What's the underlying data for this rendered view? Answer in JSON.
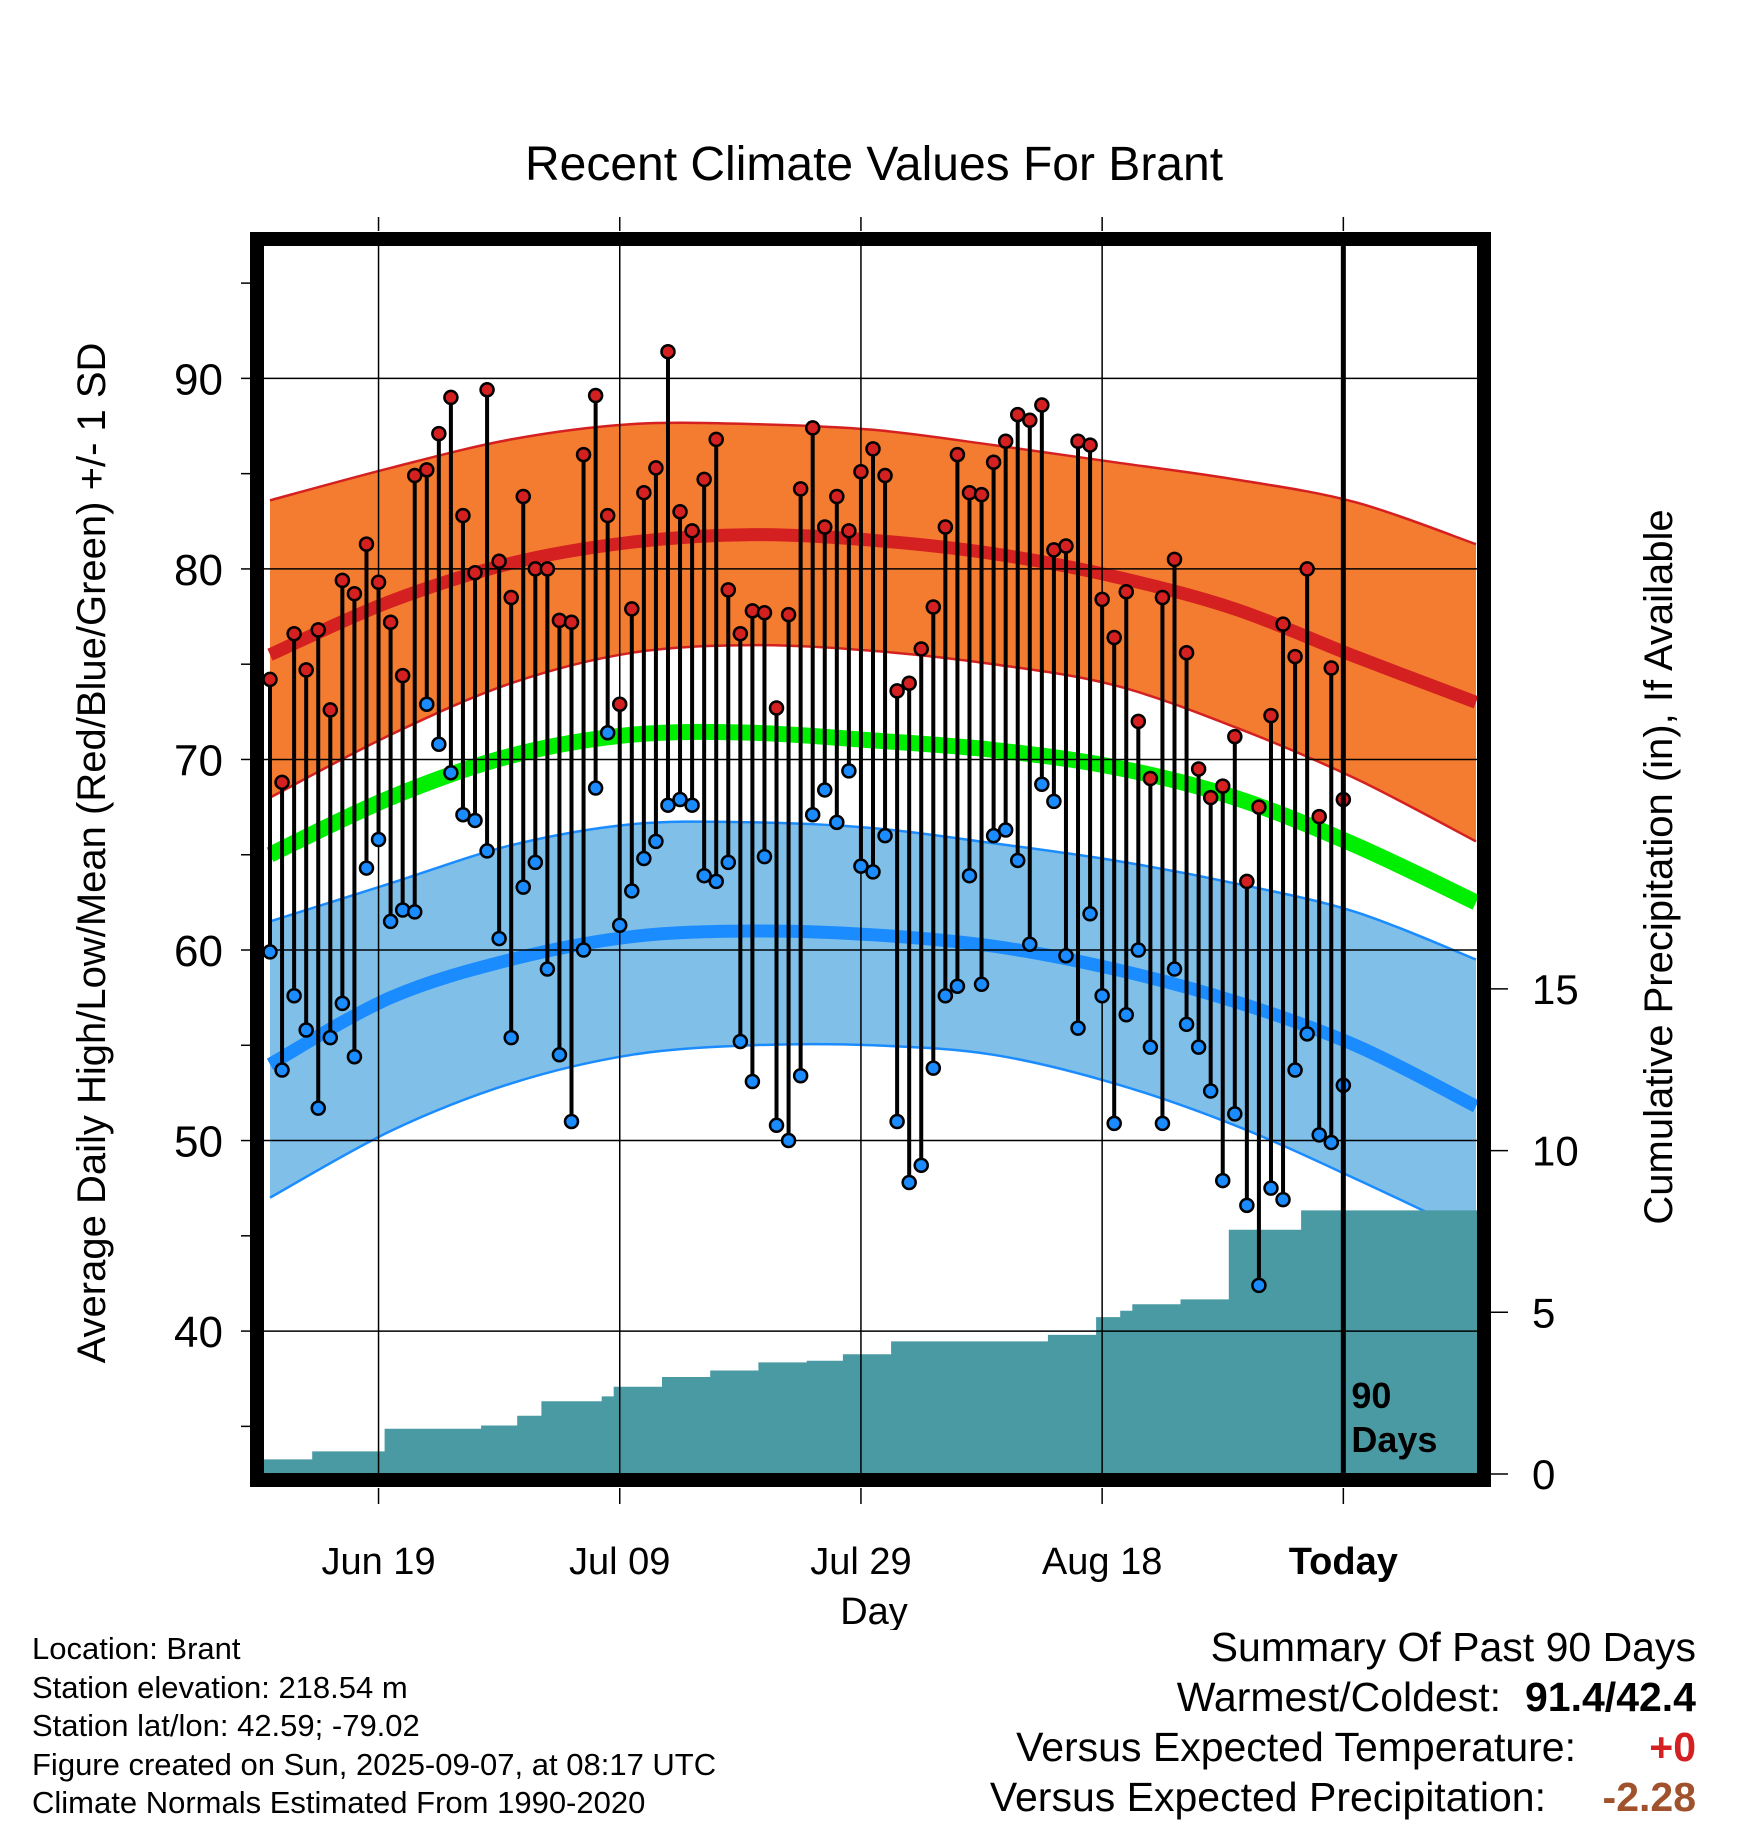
{
  "chart_data": {
    "type": "line",
    "title": "Recent Climate Values For Brant",
    "xlabel": "Day",
    "ylabel": "Average Daily High/Low/Mean (Red/Blue/Green) +/- 1 SD",
    "y2label": "Cumulative Precipitation (in), If Available",
    "x_tick_labels": [
      "Jun 19",
      "Jul 09",
      "Jul 29",
      "Aug 18",
      "Today"
    ],
    "y_ticks": [
      40,
      50,
      60,
      70,
      80,
      90
    ],
    "y2_ticks": [
      0,
      5,
      10,
      15
    ],
    "ylim": [
      32.5,
      97
    ],
    "y2lim": [
      0,
      38
    ],
    "today_marker": "90 Days",
    "colors": {
      "high_band": "#f47c30",
      "high_line": "#d42020",
      "low_band": "#80c0e8",
      "low_line": "#1a8cff",
      "mean_line": "#00ee00",
      "precip": "#4a9aa4",
      "high_dot": "#d42020",
      "low_dot": "#1a8cff"
    },
    "normals": {
      "days": [
        0,
        10,
        20,
        30,
        40,
        50,
        60,
        70,
        80,
        90,
        100
      ],
      "high_mean": [
        75.5,
        78.3,
        80.3,
        81.4,
        81.8,
        81.5,
        80.8,
        79.6,
        77.9,
        75.4,
        73.0
      ],
      "high_sd_upper": [
        83.6,
        85.3,
        86.8,
        87.6,
        87.6,
        87.3,
        86.5,
        85.6,
        84.7,
        83.5,
        81.3
      ],
      "high_sd_lower": [
        68.0,
        71.3,
        74.0,
        75.6,
        76.0,
        75.7,
        75.0,
        73.9,
        71.7,
        69.0,
        65.7
      ],
      "mean": [
        65.0,
        68.0,
        70.2,
        71.3,
        71.4,
        71.0,
        70.5,
        69.6,
        68.0,
        65.5,
        62.5
      ],
      "low_mean": [
        54.0,
        57.5,
        59.5,
        60.7,
        61.0,
        60.8,
        60.2,
        59.0,
        57.3,
        55.0,
        51.8
      ],
      "low_sd_upper": [
        61.5,
        63.5,
        65.5,
        66.6,
        66.7,
        66.4,
        65.6,
        64.7,
        63.5,
        62.0,
        59.5
      ],
      "low_sd_lower": [
        47.0,
        50.5,
        53.0,
        54.5,
        55.0,
        55.0,
        54.5,
        53.0,
        50.8,
        48.0,
        45.0
      ]
    },
    "series": [
      {
        "name": "High",
        "values": [
          74.2,
          68.8,
          76.6,
          74.7,
          76.8,
          72.6,
          79.4,
          78.7,
          81.3,
          79.3,
          77.2,
          74.4,
          84.9,
          85.2,
          87.1,
          89.0,
          82.8,
          79.8,
          89.4,
          80.4,
          78.5,
          83.8,
          80.0,
          80.0,
          77.3,
          77.2,
          86.0,
          89.1,
          82.8,
          72.9,
          77.9,
          84.0,
          85.3,
          91.4,
          83.0,
          82.0,
          84.7,
          86.8,
          78.9,
          76.6,
          77.8,
          77.7,
          72.7,
          77.6,
          84.2,
          87.4,
          82.2,
          83.8,
          82.0,
          85.1,
          86.3,
          84.9,
          73.6,
          74.0,
          75.8,
          78.0,
          82.2,
          86.0,
          84.0,
          83.9,
          85.6,
          86.7,
          88.1,
          87.8,
          88.6,
          81.0,
          81.2,
          86.7,
          86.5,
          78.4,
          76.4,
          78.8,
          72.0,
          69.0,
          78.5,
          80.5,
          75.6,
          69.5,
          68.0,
          68.6,
          71.2,
          63.6,
          67.5,
          72.3,
          77.1,
          75.4,
          80.0,
          67.0,
          74.8,
          67.9
        ]
      },
      {
        "name": "Low",
        "values": [
          59.9,
          53.7,
          57.6,
          55.8,
          51.7,
          55.4,
          57.2,
          54.4,
          64.3,
          65.8,
          61.5,
          62.1,
          62.0,
          72.9,
          70.8,
          69.3,
          67.1,
          66.8,
          65.2,
          60.6,
          55.4,
          63.3,
          64.6,
          59.0,
          54.5,
          51.0,
          60.0,
          68.5,
          71.4,
          61.3,
          63.1,
          64.8,
          65.7,
          67.6,
          67.9,
          67.6,
          63.9,
          63.6,
          64.6,
          55.2,
          53.1,
          64.9,
          50.8,
          50.0,
          53.4,
          67.1,
          68.4,
          66.7,
          69.4,
          64.4,
          64.1,
          66.0,
          51.0,
          47.8,
          48.7,
          53.8,
          57.6,
          58.1,
          63.9,
          58.2,
          66.0,
          66.3,
          64.7,
          60.3,
          68.7,
          67.8,
          59.7,
          55.9,
          61.9,
          57.6,
          50.9,
          56.6,
          60.0,
          54.9,
          50.9,
          59.0,
          56.1,
          54.9,
          52.6,
          47.9,
          51.4,
          46.6,
          42.4,
          47.5,
          46.9,
          53.7,
          55.6,
          50.3,
          49.9,
          52.9
        ]
      },
      {
        "name": "Cumulative Precipitation",
        "values": [
          0.45,
          0.45,
          0.45,
          0.45,
          0.7,
          0.7,
          0.7,
          0.7,
          0.7,
          0.7,
          1.4,
          1.4,
          1.4,
          1.4,
          1.4,
          1.4,
          1.4,
          1.4,
          1.5,
          1.5,
          1.5,
          1.8,
          1.8,
          2.25,
          2.25,
          2.25,
          2.25,
          2.25,
          2.4,
          2.7,
          2.7,
          2.7,
          2.7,
          3.0,
          3.0,
          3.0,
          3.0,
          3.2,
          3.2,
          3.2,
          3.2,
          3.45,
          3.45,
          3.45,
          3.45,
          3.5,
          3.5,
          3.5,
          3.7,
          3.7,
          3.7,
          3.7,
          4.1,
          4.1,
          4.1,
          4.1,
          4.1,
          4.1,
          4.1,
          4.1,
          4.1,
          4.1,
          4.1,
          4.1,
          4.1,
          4.3,
          4.3,
          4.3,
          4.3,
          4.85,
          4.85,
          5.05,
          5.25,
          5.25,
          5.25,
          5.25,
          5.4,
          5.4,
          5.4,
          5.4,
          7.55,
          7.55,
          7.55,
          7.55,
          7.55,
          7.55,
          8.15,
          8.15,
          8.15,
          8.15
        ]
      }
    ]
  },
  "footer_left": {
    "location": "Location: Brant",
    "elevation": "Station elevation: 218.54 m",
    "latlon": "Station lat/lon: 42.59; -79.02",
    "created": "Figure created on Sun, 2025-09-07, at 08:17 UTC",
    "normals": "Climate Normals Estimated From 1990-2020"
  },
  "summary": {
    "title": "Summary Of Past 90 Days",
    "warmest_label": "Warmest/Coldest:",
    "warmest_value": "91.4/42.4",
    "temp_label": "Versus Expected Temperature:",
    "temp_value": "+0",
    "precip_label": "Versus Expected Precipitation:",
    "precip_value": "-2.28"
  }
}
